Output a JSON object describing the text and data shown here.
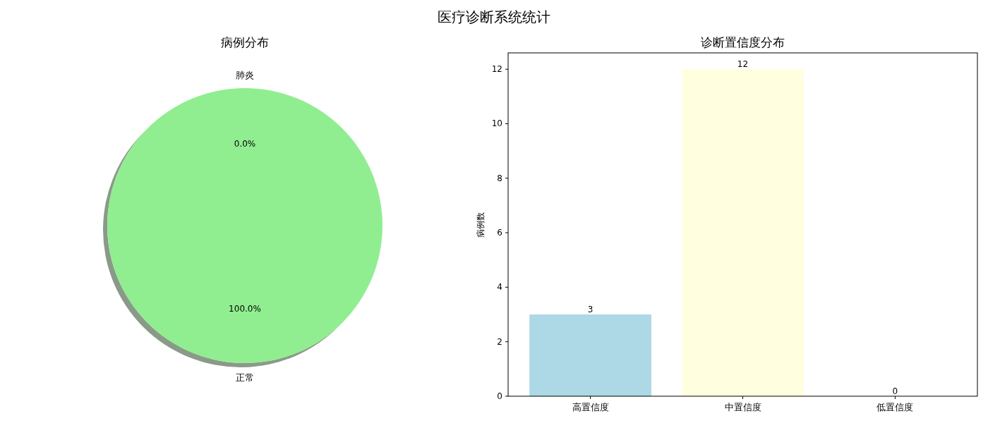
{
  "chart_data": [
    {
      "type": "pie",
      "title": "病例分布",
      "annotations": [
        "医疗诊断系统统计"
      ],
      "categories": [
        "肺炎",
        "正常"
      ],
      "values": [
        0,
        100
      ],
      "colors": [
        "#f08080",
        "#90ee90"
      ],
      "value_labels": [
        "0.0%",
        "100.0%"
      ]
    },
    {
      "type": "bar",
      "title": "诊断置信度分布",
      "ylabel": "病例数",
      "categories": [
        "高置信度",
        "中置信度",
        "低置信度"
      ],
      "values": [
        3,
        12,
        0
      ],
      "colors": [
        "#add8e6",
        "#ffffe0",
        "#f08080"
      ],
      "ylim": [
        0,
        12.6
      ],
      "yticks": [
        0,
        2,
        4,
        6,
        8,
        10,
        12
      ],
      "data_labels": true
    }
  ]
}
